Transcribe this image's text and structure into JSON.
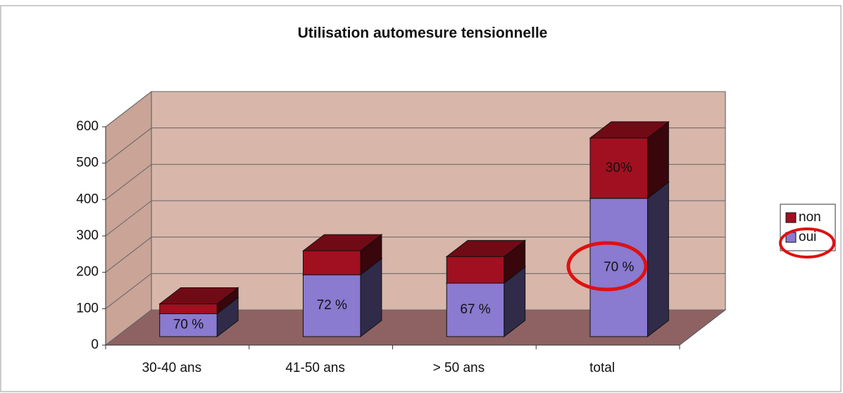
{
  "chart_data": {
    "type": "bar3d_stacked",
    "title": "Utilisation automesure tensionnelle",
    "categories": [
      "30-40 ans",
      "41-50 ans",
      "> 50 ans",
      "total"
    ],
    "series": [
      {
        "name": "oui",
        "color": "#8a7ad0",
        "values": [
          63,
          170,
          147,
          380
        ],
        "percent_labels": [
          "70 %",
          "72 %",
          "67 %",
          "70 %"
        ]
      },
      {
        "name": "non",
        "color": "#a01020",
        "values": [
          27,
          66,
          73,
          166
        ],
        "percent_labels": [
          null,
          null,
          null,
          "30%"
        ]
      }
    ],
    "ylim": [
      0,
      600
    ],
    "yticks": [
      0,
      100,
      200,
      300,
      400,
      500,
      600
    ],
    "grid": true,
    "legend": "right"
  }
}
